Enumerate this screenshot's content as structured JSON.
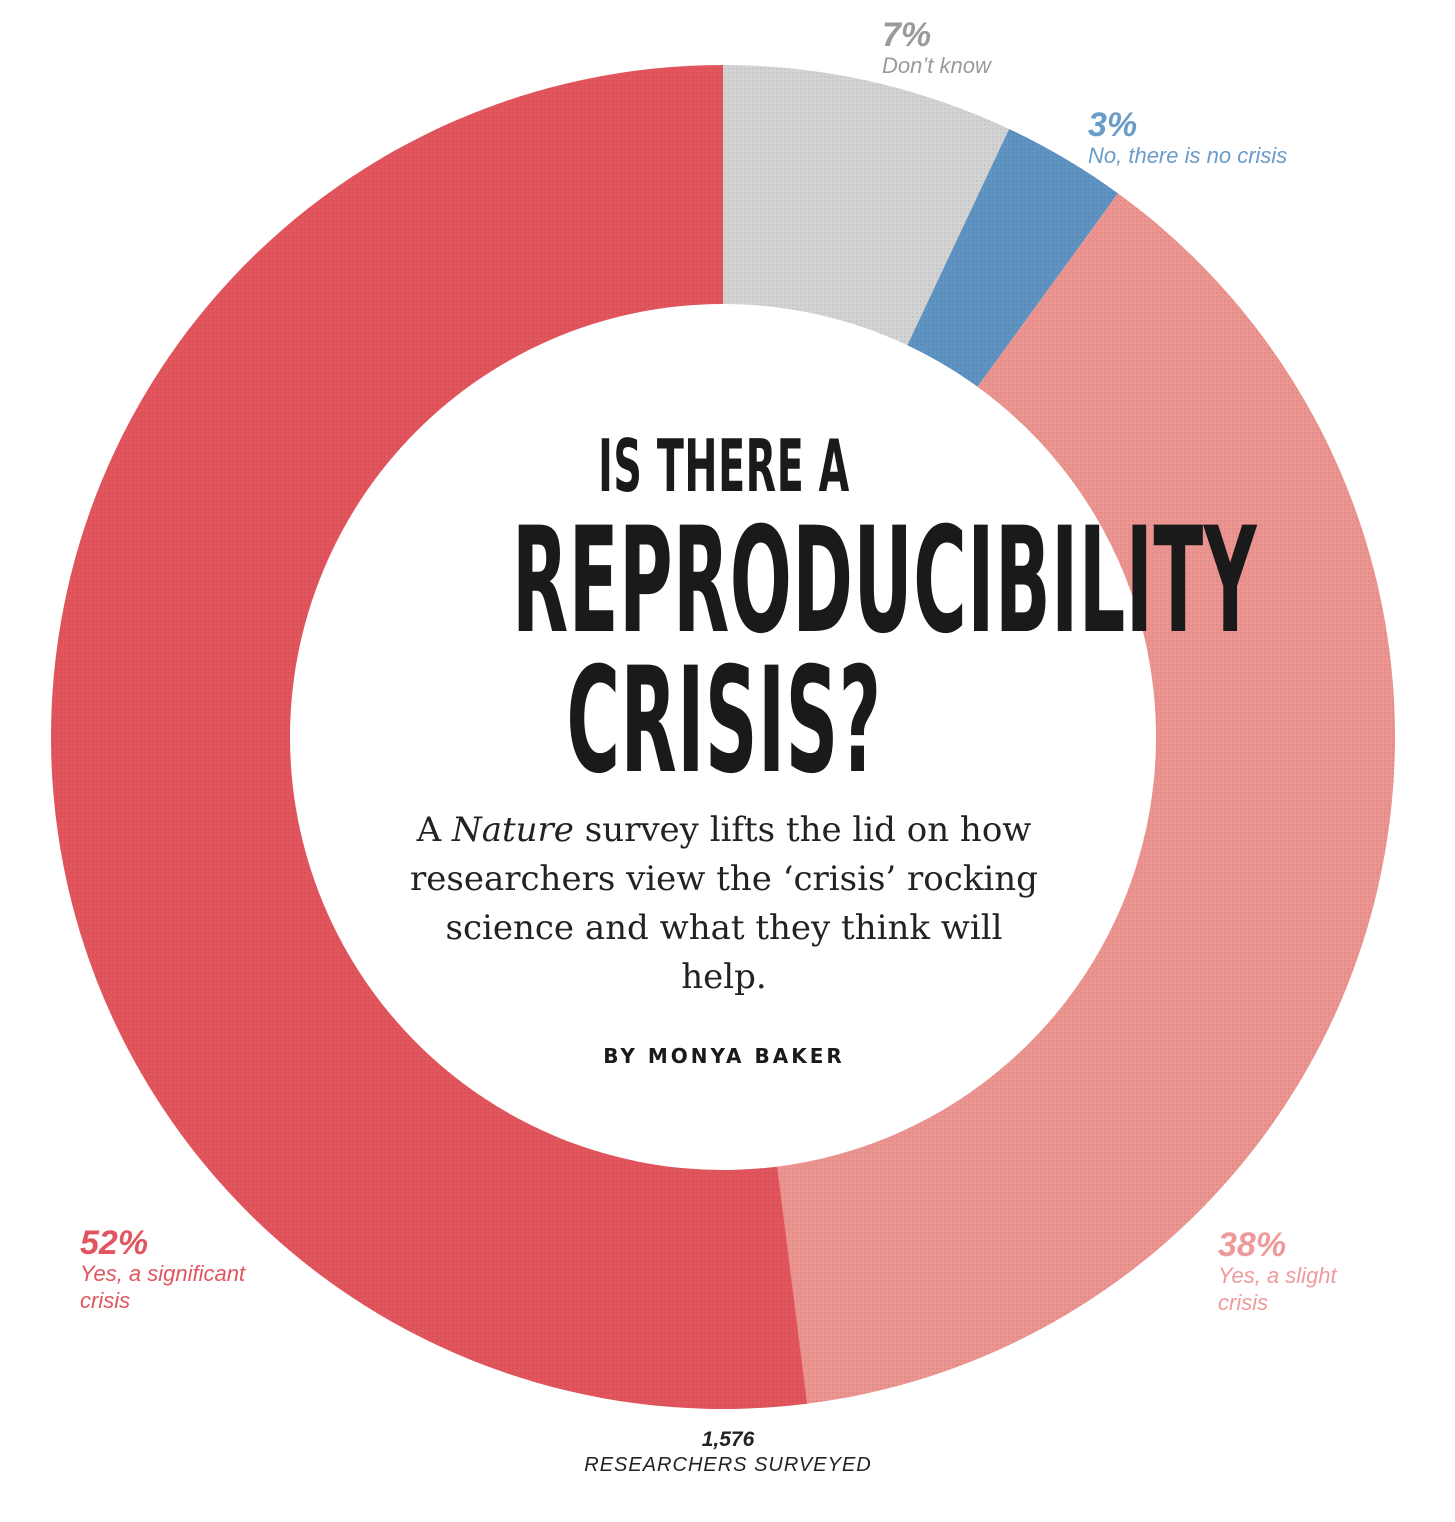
{
  "colors": {
    "significant": "#e3555d",
    "slight": "#ec9490",
    "no": "#5e93c2",
    "dont_know": "#d3d3d3",
    "significant_label": "#e0555f",
    "slight_label": "#ef9a9a",
    "no_label": "#6a9cc8",
    "dont_know_label": "#9a9a9a"
  },
  "headline": {
    "line1": "IS THERE A",
    "line2": "REPRODUCIBILITY",
    "line3": "CRISIS?"
  },
  "dek": {
    "pre": "A ",
    "italic": "Nature",
    "post": " survey lifts the lid on how researchers view the ‘crisis’ rocking science and what they think will help."
  },
  "byline": "BY MONYA BAKER",
  "surveyed": {
    "count": "1,576",
    "caption": "RESEARCHERS SURVEYED"
  },
  "chart_data": {
    "type": "pie",
    "donut": true,
    "slices": [
      {
        "key": "dont_know",
        "value": 7,
        "pct_label": "7%",
        "label": "Don’t know"
      },
      {
        "key": "no",
        "value": 3,
        "pct_label": "3%",
        "label": "No, there is no crisis"
      },
      {
        "key": "slight",
        "value": 38,
        "pct_label": "38%",
        "label_lines": [
          "Yes, a slight",
          "crisis"
        ]
      },
      {
        "key": "significant",
        "value": 52,
        "pct_label": "52%",
        "label_lines": [
          "Yes, a significant",
          "crisis"
        ]
      }
    ]
  }
}
